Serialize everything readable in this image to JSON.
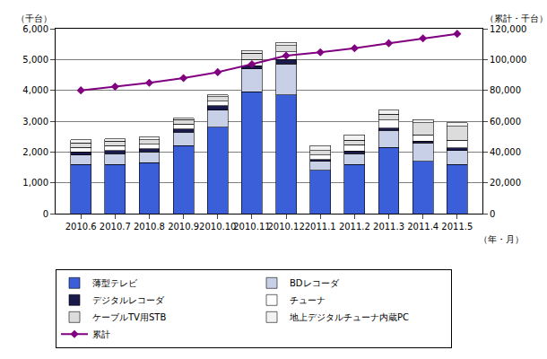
{
  "chart_data": {
    "type": "bar",
    "stacked": true,
    "grid": true,
    "legend": "bottom",
    "y_label": "（千台）",
    "y2_label": "（累計・千台）",
    "x_label": "（年・月）",
    "categories": [
      "2010.6",
      "2010.7",
      "2010.8",
      "2010.9",
      "2010.10",
      "2010.11",
      "2010.12",
      "2011.1",
      "2011.2",
      "2011.3",
      "2011.4",
      "2011.5"
    ],
    "ylim": [
      0,
      6000
    ],
    "yticks": [
      0,
      {
        "value": 1000,
        "label": "1,000"
      },
      {
        "value": 2000,
        "label": "2,000"
      },
      {
        "value": 3000,
        "label": "3,000"
      },
      {
        "value": 4000,
        "label": "4,000"
      },
      {
        "value": 5000,
        "label": "5,000"
      },
      {
        "value": 6000,
        "label": "6,000"
      }
    ],
    "y2lim": [
      0,
      120000
    ],
    "y2ticks": [
      0,
      {
        "value": 20000,
        "label": "20,000"
      },
      {
        "value": 40000,
        "label": "40,000"
      },
      {
        "value": 60000,
        "label": "60,000"
      },
      {
        "value": 80000,
        "label": "80,000"
      },
      {
        "value": 100000,
        "label": "100,000"
      },
      {
        "value": 120000,
        "label": "120,000"
      }
    ],
    "series": [
      {
        "name": "薄型テレビ",
        "color": "#3a5fd9",
        "values": [
          1600,
          1600,
          1650,
          2200,
          2800,
          3950,
          3850,
          1400,
          1600,
          2150,
          1700,
          1600
        ]
      },
      {
        "name": "BDレコーダ",
        "color": "#c8d0e8",
        "values": [
          300,
          350,
          350,
          450,
          550,
          750,
          1000,
          300,
          350,
          550,
          600,
          450
        ]
      },
      {
        "name": "デジタルレコーダ",
        "color": "#1a1a4d",
        "values": [
          100,
          100,
          100,
          100,
          150,
          100,
          150,
          50,
          80,
          80,
          50,
          80
        ]
      },
      {
        "name": "チューナ",
        "color": "#ffffff",
        "values": [
          150,
          150,
          150,
          150,
          150,
          200,
          250,
          150,
          200,
          250,
          200,
          250
        ]
      },
      {
        "name": "ケーブルTV用STB",
        "color": "#dcdcdc",
        "values": [
          150,
          150,
          150,
          150,
          150,
          200,
          200,
          150,
          150,
          200,
          400,
          450
        ]
      },
      {
        "name": "地上デジタルチューナ内蔵PC",
        "color": "#f2f2f2",
        "values": [
          100,
          70,
          80,
          50,
          50,
          100,
          100,
          150,
          170,
          120,
          100,
          120
        ]
      },
      {
        "name": "累計",
        "color": "#800080",
        "type": "line",
        "axis": "y2",
        "marker": "diamond",
        "values": [
          80000,
          82400,
          84900,
          88000,
          91800,
          97000,
          102500,
          104700,
          107300,
          110600,
          113700,
          116700
        ]
      }
    ]
  }
}
